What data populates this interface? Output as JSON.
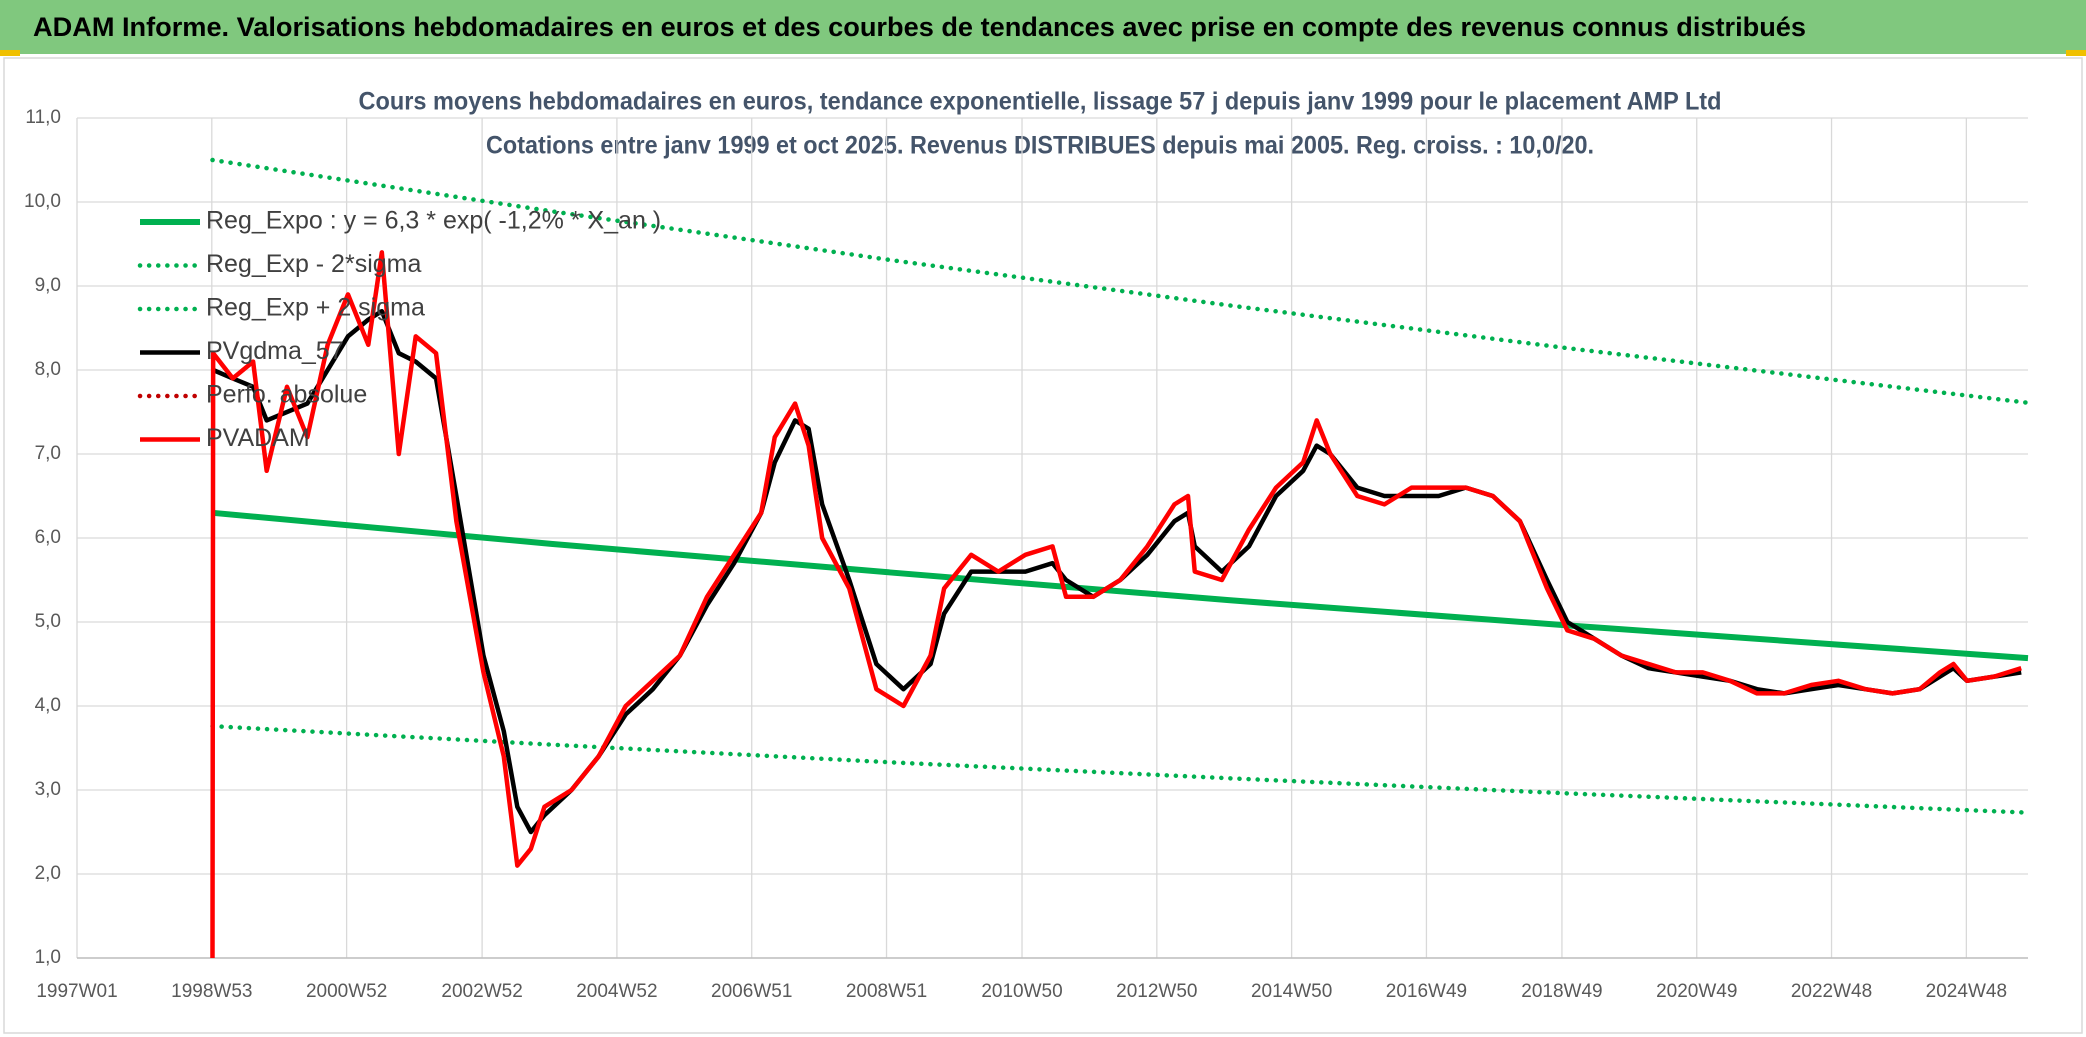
{
  "header": {
    "title": "ADAM Informe. Valorisations hebdomadaires en euros et des courbes de tendances avec prise en compte des revenus connus distribués"
  },
  "chart_data": {
    "type": "line",
    "title": "Cours moyens hebdomadaires en euros, tendance exponentielle, lissage 57 j depuis janv 1999 pour le placement AMP Ltd",
    "subtitle": "Cotations entre janv 1999 et oct 2025. Revenus DISTRIBUES depuis mai 2005. Reg. croiss. : 10,0/20.",
    "xlim": [
      1997.0,
      2025.8
    ],
    "xticks": [
      {
        "value": 1997.0,
        "label": "1997W01"
      },
      {
        "value": 1998.99,
        "label": "1998W53"
      },
      {
        "value": 2000.98,
        "label": "2000W52"
      },
      {
        "value": 2002.98,
        "label": "2002W52"
      },
      {
        "value": 2004.97,
        "label": "2004W52"
      },
      {
        "value": 2006.96,
        "label": "2006W51"
      },
      {
        "value": 2008.95,
        "label": "2008W51"
      },
      {
        "value": 2010.95,
        "label": "2010W50"
      },
      {
        "value": 2012.94,
        "label": "2012W50"
      },
      {
        "value": 2014.93,
        "label": "2014W50"
      },
      {
        "value": 2016.92,
        "label": "2016W49"
      },
      {
        "value": 2018.92,
        "label": "2018W49"
      },
      {
        "value": 2020.91,
        "label": "2020W49"
      },
      {
        "value": 2022.9,
        "label": "2022W48"
      },
      {
        "value": 2024.89,
        "label": "2024W48"
      }
    ],
    "ylim": [
      1,
      11
    ],
    "yticks": [
      {
        "value": 1,
        "label": "1,0"
      },
      {
        "value": 2,
        "label": "2,0"
      },
      {
        "value": 3,
        "label": "3,0"
      },
      {
        "value": 4,
        "label": "4,0"
      },
      {
        "value": 5,
        "label": "5,0"
      },
      {
        "value": 6,
        "label": "6,0"
      },
      {
        "value": 7,
        "label": "7,0"
      },
      {
        "value": 8,
        "label": "8,0"
      },
      {
        "value": 9,
        "label": "9,0"
      },
      {
        "value": 10,
        "label": "10,0"
      },
      {
        "value": 11,
        "label": "11,0"
      }
    ],
    "grid": true,
    "legend": "top-left",
    "x": [
      1999.0,
      1999.01,
      1999.3,
      1999.6,
      1999.8,
      2000.1,
      2000.4,
      2000.7,
      2001.0,
      2001.3,
      2001.5,
      2001.75,
      2002.0,
      2002.3,
      2002.6,
      2003.0,
      2003.3,
      2003.5,
      2003.7,
      2003.9,
      2004.3,
      2004.7,
      2005.1,
      2005.5,
      2005.9,
      2006.3,
      2006.7,
      2007.1,
      2007.3,
      2007.6,
      2007.8,
      2008.0,
      2008.4,
      2008.8,
      2009.2,
      2009.6,
      2009.8,
      2010.2,
      2010.6,
      2011.0,
      2011.4,
      2011.6,
      2012.0,
      2012.4,
      2012.8,
      2013.2,
      2013.4,
      2013.5,
      2013.9,
      2014.3,
      2014.7,
      2015.1,
      2015.3,
      2015.5,
      2015.9,
      2016.3,
      2016.7,
      2017.1,
      2017.5,
      2017.9,
      2018.3,
      2018.7,
      2019.0,
      2019.4,
      2019.8,
      2020.2,
      2020.6,
      2021.0,
      2021.4,
      2021.8,
      2022.2,
      2022.6,
      2023.0,
      2023.4,
      2023.8,
      2024.2,
      2024.5,
      2024.7,
      2024.9,
      2025.3,
      2025.7
    ],
    "series": [
      {
        "name": "Reg_Expo : y = 6,3 * exp( -1,2% * X_an )",
        "color": "#00b050",
        "style": "solid",
        "x": [
          1999.0,
          2004.0,
          2009.0,
          2014.0,
          2019.0,
          2025.8
        ],
        "values": [
          6.3,
          5.93,
          5.59,
          5.26,
          4.96,
          4.57
        ]
      },
      {
        "name": "Reg_Exp - 2*sigma",
        "color": "#00b050",
        "style": "dotted",
        "x": [
          1999.0,
          2004.0,
          2009.0,
          2014.0,
          2019.0,
          2025.8
        ],
        "values": [
          3.76,
          3.54,
          3.33,
          3.14,
          2.96,
          2.73
        ]
      },
      {
        "name": "Reg_Exp + 2 sigma",
        "color": "#00b050",
        "style": "dotted",
        "x": [
          1999.0,
          2004.0,
          2009.0,
          2014.0,
          2019.0,
          2025.8
        ],
        "values": [
          10.5,
          9.89,
          9.31,
          8.77,
          8.26,
          7.61
        ]
      },
      {
        "name": "PVgdma_57",
        "color": "#000000",
        "style": "solid",
        "values": [
          null,
          8.0,
          7.9,
          7.8,
          7.4,
          7.5,
          7.6,
          8.0,
          8.4,
          8.6,
          8.7,
          8.2,
          8.1,
          7.9,
          6.5,
          4.6,
          3.7,
          2.8,
          2.5,
          2.7,
          3.0,
          3.4,
          3.9,
          4.2,
          4.6,
          5.2,
          5.7,
          6.3,
          6.9,
          7.4,
          7.3,
          6.4,
          5.5,
          4.5,
          4.2,
          4.5,
          5.1,
          5.6,
          5.6,
          5.6,
          5.7,
          5.5,
          5.3,
          5.5,
          5.8,
          6.2,
          6.3,
          5.9,
          5.6,
          5.9,
          6.5,
          6.8,
          7.1,
          7.0,
          6.6,
          6.5,
          6.5,
          6.5,
          6.6,
          6.5,
          6.2,
          5.5,
          5.0,
          4.8,
          4.6,
          4.45,
          4.4,
          4.35,
          4.3,
          4.2,
          4.15,
          4.2,
          4.25,
          4.2,
          4.15,
          4.2,
          4.35,
          4.45,
          4.3,
          4.35,
          4.4
        ]
      },
      {
        "name": "Perfo. absolue",
        "color": "#c00000",
        "style": "dotted"
      },
      {
        "name": "PVADAM",
        "color": "#ff0000",
        "style": "solid",
        "values": [
          1.0,
          8.2,
          7.9,
          8.1,
          6.8,
          7.8,
          7.2,
          8.3,
          8.9,
          8.3,
          9.4,
          7.0,
          8.4,
          8.2,
          6.2,
          4.4,
          3.4,
          2.1,
          2.3,
          2.8,
          3.0,
          3.4,
          4.0,
          4.3,
          4.6,
          5.3,
          5.8,
          6.3,
          7.2,
          7.6,
          7.1,
          6.0,
          5.4,
          4.2,
          4.0,
          4.6,
          5.4,
          5.8,
          5.6,
          5.8,
          5.9,
          5.3,
          5.3,
          5.5,
          5.9,
          6.4,
          6.5,
          5.6,
          5.5,
          6.1,
          6.6,
          6.9,
          7.4,
          7.0,
          6.5,
          6.4,
          6.6,
          6.6,
          6.6,
          6.5,
          6.2,
          5.4,
          4.9,
          4.8,
          4.6,
          4.5,
          4.4,
          4.4,
          4.3,
          4.15,
          4.15,
          4.25,
          4.3,
          4.2,
          4.15,
          4.2,
          4.4,
          4.5,
          4.3,
          4.35,
          4.45
        ]
      }
    ]
  }
}
